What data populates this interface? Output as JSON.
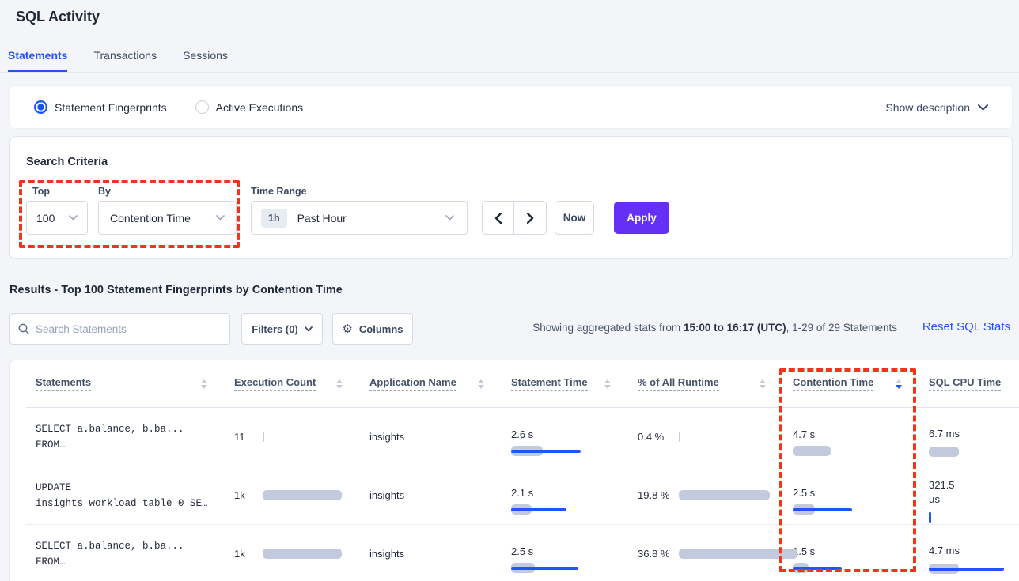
{
  "header": {
    "title": "SQL Activity"
  },
  "tabs": [
    {
      "label": "Statements",
      "active": true
    },
    {
      "label": "Transactions",
      "active": false
    },
    {
      "label": "Sessions",
      "active": false
    }
  ],
  "view_toggle": {
    "fingerprints": "Statement Fingerprints",
    "active_executions": "Active Executions",
    "selected": "Statement Fingerprints",
    "show_description": "Show description"
  },
  "search_criteria": {
    "title": "Search Criteria",
    "top": {
      "label": "Top",
      "value": "100"
    },
    "by": {
      "label": "By",
      "value": "Contention Time"
    },
    "time_range": {
      "label": "Time Range",
      "badge": "1h",
      "value": "Past Hour"
    },
    "now_label": "Now",
    "apply_label": "Apply"
  },
  "results": {
    "heading": "Results - Top 100 Statement Fingerprints by Contention Time",
    "search_placeholder": "Search Statements",
    "filters_label": "Filters (0)",
    "columns_label": "Columns",
    "showing_prefix": "Showing aggregated stats from ",
    "showing_bold": "15:00 to 16:17 (UTC)",
    "showing_suffix": ", 1-29 of 29 Statements",
    "reset_label": "Reset SQL Stats"
  },
  "colors": {
    "accent_blue": "#2352ff",
    "apply_purple": "#6430f5",
    "annotation_red": "#f5321b",
    "bar_gray": "#c4cade"
  },
  "table": {
    "columns": [
      {
        "label": "Statements",
        "sort": "none"
      },
      {
        "label": "Execution Count",
        "sort": "none"
      },
      {
        "label": "Application Name",
        "sort": "none"
      },
      {
        "label": "Statement Time",
        "sort": "none"
      },
      {
        "label": "% of All Runtime",
        "sort": "none"
      },
      {
        "label": "Contention Time",
        "sort": "desc"
      },
      {
        "label": "SQL CPU Time",
        "sort": "none"
      }
    ],
    "rows": [
      {
        "sql_line1": "SELECT a.balance, b.ba...",
        "sql_line2": "FROM…",
        "execution_count": "11",
        "exec_bar": {
          "gray": 2,
          "blue": 0
        },
        "application": "insights",
        "statement_time": "2.6 s",
        "stmt_bar": {
          "gray": 40,
          "blue": 88
        },
        "runtime_pct": "0.4 %",
        "pct_bar": {
          "gray": 2,
          "blue": 0
        },
        "contention_time": "4.7 s",
        "cont_bar": {
          "gray": 48,
          "blue": 0
        },
        "sql_cpu": "6.7 ms",
        "cpu_bar": {
          "gray": 38,
          "blue": 0
        }
      },
      {
        "sql_line1": "UPDATE",
        "sql_line2": "insights_workload_table_0 SE…",
        "execution_count": "1k",
        "exec_bar": {
          "gray": 100,
          "blue": 0
        },
        "application": "insights",
        "statement_time": "2.1 s",
        "stmt_bar": {
          "gray": 26,
          "blue": 70
        },
        "runtime_pct": "19.8 %",
        "pct_bar": {
          "gray": 115,
          "blue": 0
        },
        "contention_time": "2.5 s",
        "cont_bar": {
          "gray": 28,
          "blue": 75
        },
        "sql_cpu": "321.5 µs",
        "cpu_bar": {
          "gray": 0,
          "blue": 3
        }
      },
      {
        "sql_line1": "SELECT a.balance, b.ba...",
        "sql_line2": "FROM…",
        "execution_count": "1k",
        "exec_bar": {
          "gray": 100,
          "blue": 0
        },
        "application": "insights",
        "statement_time": "2.5 s",
        "stmt_bar": {
          "gray": 30,
          "blue": 85
        },
        "runtime_pct": "36.8 %",
        "pct_bar": {
          "gray": 150,
          "blue": 0
        },
        "contention_time": "1.5 s",
        "cont_bar": {
          "gray": 20,
          "blue": 62
        },
        "sql_cpu": "4.7 ms",
        "cpu_bar": {
          "gray": 38,
          "blue": 95
        }
      }
    ]
  }
}
